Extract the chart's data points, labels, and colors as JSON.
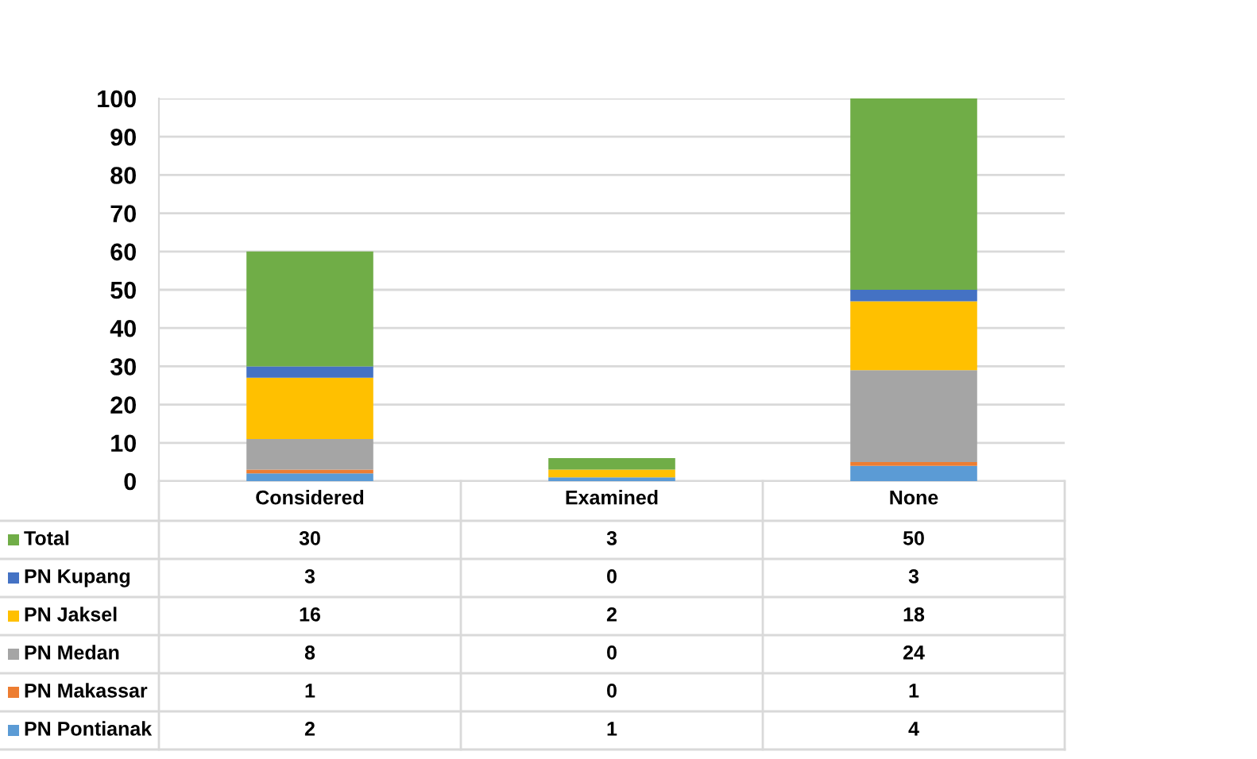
{
  "chart_data": {
    "type": "bar",
    "stacked": true,
    "categories": [
      "Considered",
      "Examined",
      "None"
    ],
    "series": [
      {
        "name": "PN Pontianak",
        "color": "#5b9bd5",
        "values": [
          2,
          1,
          4
        ]
      },
      {
        "name": "PN Makassar",
        "color": "#ed7d31",
        "values": [
          1,
          0,
          1
        ]
      },
      {
        "name": "PN Medan",
        "color": "#a5a5a5",
        "values": [
          8,
          0,
          24
        ]
      },
      {
        "name": "PN Jaksel",
        "color": "#ffc000",
        "values": [
          16,
          2,
          18
        ]
      },
      {
        "name": "PN Kupang",
        "color": "#4472c4",
        "values": [
          3,
          0,
          3
        ]
      },
      {
        "name": "Total",
        "color": "#70ad47",
        "values": [
          30,
          3,
          50
        ]
      }
    ],
    "ylim": [
      0,
      100
    ],
    "yticks": [
      0,
      10,
      20,
      30,
      40,
      50,
      60,
      70,
      80,
      90,
      100
    ],
    "grid": "y",
    "legend": "bottom",
    "data_labels": true
  }
}
